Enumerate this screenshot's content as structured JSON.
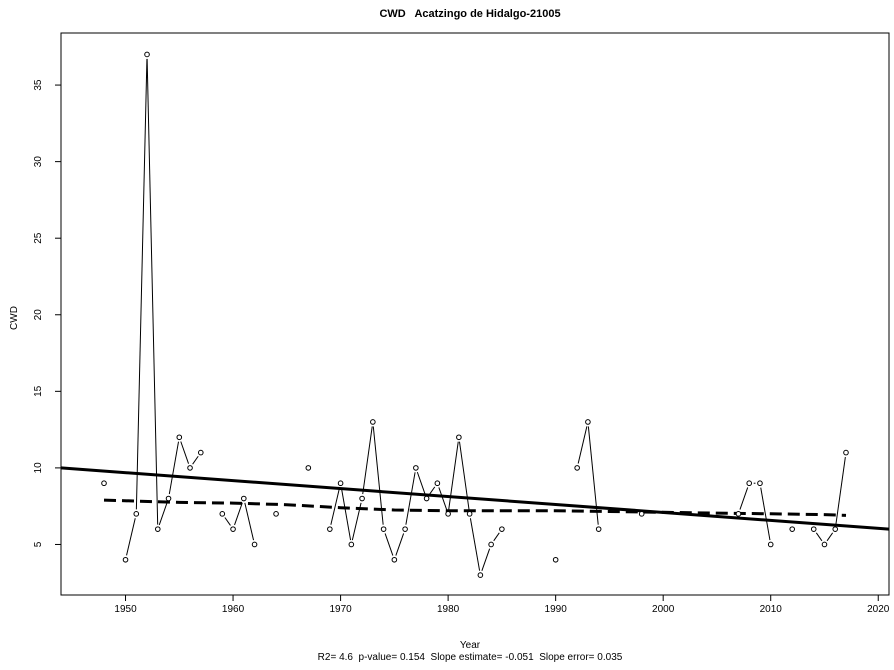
{
  "chart_data": {
    "type": "line",
    "title": "CWD   Acatzingo de Hidalgo-21005",
    "xlabel": "Year",
    "ylabel": "CWD",
    "subtitle": "R2= 4.6  p-value= 0.154  Slope estimate= -0.051  Slope error= 0.035",
    "xlim": [
      1944,
      2021
    ],
    "ylim": [
      1.7,
      38.4
    ],
    "x_ticks": [
      1950,
      1960,
      1970,
      1980,
      1990,
      2000,
      2010,
      2020
    ],
    "y_ticks": [
      5,
      10,
      15,
      20,
      25,
      30,
      35
    ],
    "grid": false,
    "series": [
      {
        "style": "thin solid line with open circle markers",
        "x": [
          1948,
          1950,
          1951,
          1952,
          1953,
          1954,
          1955,
          1956,
          1957,
          1959,
          1960,
          1961,
          1962,
          1964,
          1967,
          1969,
          1970,
          1971,
          1972,
          1973,
          1974,
          1975,
          1976,
          1977,
          1978,
          1979,
          1980,
          1981,
          1982,
          1983,
          1984,
          1985,
          1990,
          1992,
          1993,
          1994,
          1998,
          2007,
          2008,
          2009,
          2010,
          2012,
          2014,
          2015,
          2016,
          2017
        ],
        "y": [
          9,
          4,
          7,
          37,
          6,
          8,
          12,
          10,
          11,
          7,
          6,
          8,
          5,
          7,
          10,
          6,
          9,
          5,
          8,
          13,
          6,
          4,
          6,
          10,
          8,
          9,
          7,
          12,
          7,
          3,
          5,
          6,
          4,
          10,
          13,
          6,
          7,
          7,
          9,
          9,
          5,
          6,
          6,
          5,
          6,
          11
        ]
      },
      {
        "style": "thick solid linear trend",
        "x": [
          1944,
          2021
        ],
        "y": [
          10,
          6
        ]
      },
      {
        "style": "thick dashed smoothed trend",
        "x": [
          1948,
          1955,
          1960,
          1965,
          1970,
          1975,
          1980,
          1985,
          1990,
          1995,
          2000,
          2005,
          2010,
          2015,
          2017
        ],
        "y": [
          7.9,
          7.75,
          7.7,
          7.6,
          7.4,
          7.25,
          7.2,
          7.2,
          7.2,
          7.15,
          7.1,
          7.05,
          7.0,
          6.95,
          6.9
        ]
      }
    ]
  }
}
